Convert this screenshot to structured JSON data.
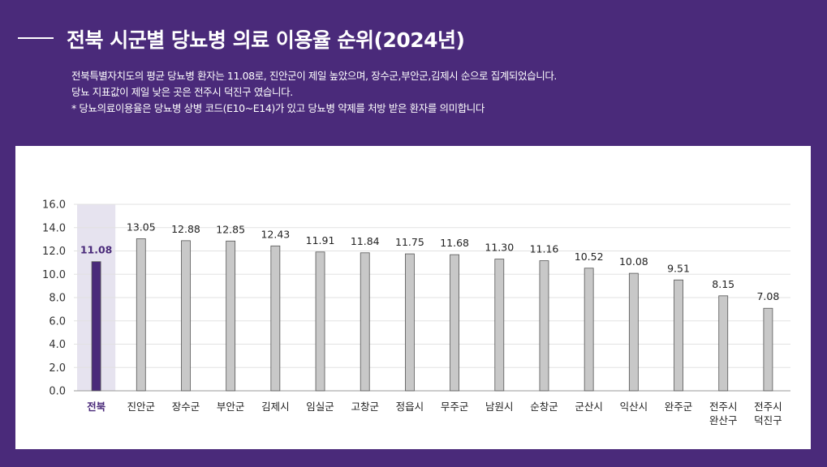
{
  "header": {
    "title": "전북 시군별 당뇨병 의료 이용율 순위(2024년)",
    "description": [
      "전북특별자치도의 평균 당뇨병 환자는 11.08로, 진안군이 제일 높았으며, 장수군,부안군,김제시 순으로 집계되었습니다.",
      "당뇨 지표값이 제일 낮은 곳은 전주시 덕진구 였습니다.",
      "* 당뇨의료이용율은 당뇨병 상병 코드(E10~E14)가 있고 당뇨병 약제를 처방 받은 환자를 의미합니다"
    ]
  },
  "colors": {
    "background": "#4a2a7a",
    "highlight_bar": "#4a2a7a",
    "highlight_band": "#e6e3ef",
    "bar": "#c8c8c8",
    "bar_border": "#555555",
    "highlight_label": "#4a2a7a"
  },
  "chart_data": {
    "type": "bar",
    "categories": [
      "전북",
      "진안군",
      "장수군",
      "부안군",
      "김제시",
      "임실군",
      "고창군",
      "정읍시",
      "무주군",
      "남원시",
      "순창군",
      "군산시",
      "익산시",
      "완주군",
      "전주시\n완산구",
      "전주시\n덕진구"
    ],
    "values": [
      11.08,
      13.05,
      12.88,
      12.85,
      12.43,
      11.91,
      11.84,
      11.75,
      11.68,
      11.3,
      11.16,
      10.52,
      10.08,
      9.51,
      8.15,
      7.08
    ],
    "value_labels": [
      "11.08",
      "13.05",
      "12.88",
      "12.85",
      "12.43",
      "11.91",
      "11.84",
      "11.75",
      "11.68",
      "11.30",
      "11.16",
      "10.52",
      "10.08",
      "9.51",
      "8.15",
      "7.08"
    ],
    "highlight_index": 0,
    "ylim": [
      0,
      16
    ],
    "yticks": [
      "0.0",
      "2.0",
      "4.0",
      "6.0",
      "8.0",
      "10.0",
      "12.0",
      "14.0",
      "16.0"
    ],
    "grid": true,
    "title": "",
    "xlabel": "",
    "ylabel": ""
  }
}
